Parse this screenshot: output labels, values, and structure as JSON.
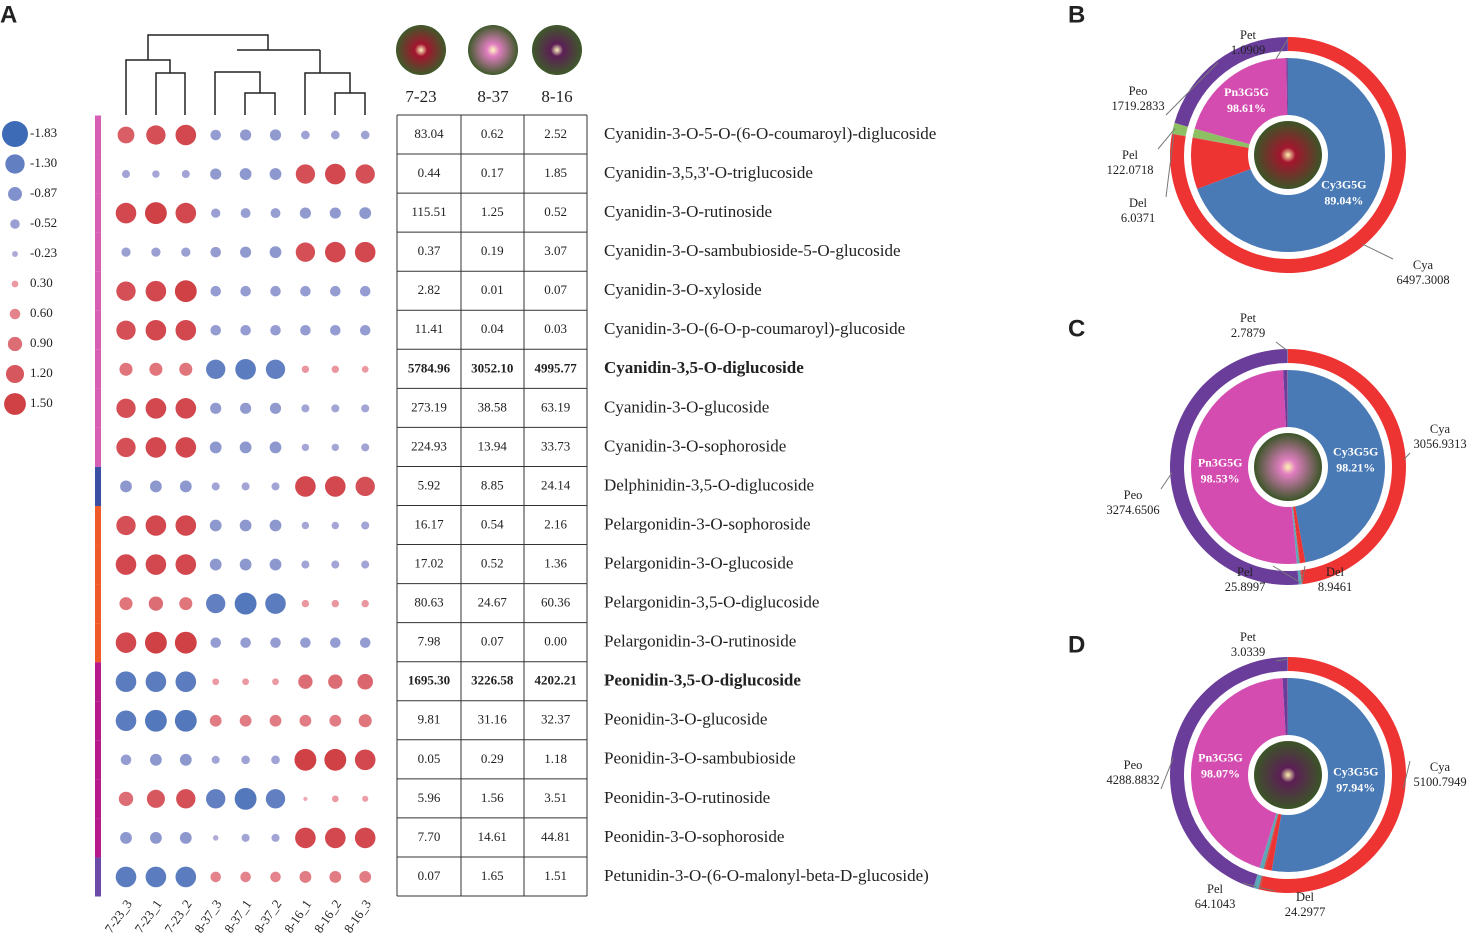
{
  "panel_labels": [
    "A",
    "B",
    "C",
    "D"
  ],
  "heatmap": {
    "samples": [
      "7-23",
      "8-37",
      "8-16"
    ],
    "sample_colors": [
      "#a3152e",
      "#e07ec0",
      "#5c1f55"
    ],
    "columns": [
      "7-23_3",
      "7-23_1",
      "7-23_2",
      "8-37_3",
      "8-37_1",
      "8-37_2",
      "8-16_1",
      "8-16_2",
      "8-16_3"
    ],
    "legend": [
      -1.83,
      {
        "value": -1.3,
        "label": "-1.30"
      },
      -0.87,
      -0.52,
      -0.23,
      {
        "value": 0.3,
        "label": "0.30"
      },
      {
        "value": 0.6,
        "label": "0.60"
      },
      {
        "value": 0.9,
        "label": "0.90"
      },
      {
        "value": 1.2,
        "label": "1.20"
      },
      {
        "value": 1.5,
        "label": "1.50"
      }
    ],
    "rows": [
      {
        "compound": "Cyanidin-3-O-5-O-(6-O-coumaroyl)-diglucoside",
        "group_color": "#d65fb5",
        "values": [
          "83.04",
          "0.62",
          "2.52"
        ],
        "z": [
          1.1,
          1.3,
          1.4,
          -0.6,
          -0.65,
          -0.65,
          -0.45,
          -0.45,
          -0.45
        ]
      },
      {
        "compound": "Cyanidin-3,5,3'-O-triglucoside",
        "group_color": "#d65fb5",
        "values": [
          "0.44",
          "0.17",
          "1.85"
        ],
        "z": [
          -0.4,
          -0.35,
          -0.4,
          -0.65,
          -0.7,
          -0.7,
          1.3,
          1.4,
          1.3
        ]
      },
      {
        "compound": "Cyanidin-3-O-rutinoside",
        "group_color": "#d65fb5",
        "values": [
          "115.51",
          "1.25",
          "0.52"
        ],
        "z": [
          1.4,
          1.5,
          1.4,
          -0.5,
          -0.55,
          -0.55,
          -0.65,
          -0.65,
          -0.7
        ]
      },
      {
        "compound": "Cyanidin-3-O-sambubioside-5-O-glucoside",
        "group_color": "#d65fb5",
        "values": [
          "0.37",
          "0.19",
          "3.07"
        ],
        "z": [
          -0.5,
          -0.5,
          -0.5,
          -0.6,
          -0.65,
          -0.7,
          1.3,
          1.4,
          1.4
        ]
      },
      {
        "compound": "Cyanidin-3-O-xyloside",
        "group_color": "#d65fb5",
        "values": [
          "2.82",
          "0.01",
          "0.07"
        ],
        "z": [
          1.3,
          1.4,
          1.5,
          -0.6,
          -0.6,
          -0.6,
          -0.6,
          -0.6,
          -0.6
        ]
      },
      {
        "compound": "Cyanidin-3-O-(6-O-p-coumaroyl)-glucoside",
        "group_color": "#d65fb5",
        "values": [
          "11.41",
          "0.04",
          "0.03"
        ],
        "z": [
          1.3,
          1.4,
          1.4,
          -0.6,
          -0.6,
          -0.6,
          -0.6,
          -0.6,
          -0.6
        ]
      },
      {
        "compound": "Cyanidin-3,5-O-diglucoside",
        "group_color": "#d65fb5",
        "bold": true,
        "values": [
          "5784.96",
          "3052.10",
          "4995.77"
        ],
        "z": [
          0.8,
          0.8,
          0.8,
          -1.3,
          -1.4,
          -1.3,
          0.35,
          0.35,
          0.3
        ]
      },
      {
        "compound": "Cyanidin-3-O-glucoside",
        "group_color": "#d65fb5",
        "values": [
          "273.19",
          "38.58",
          "63.19"
        ],
        "z": [
          1.3,
          1.4,
          1.4,
          -0.65,
          -0.65,
          -0.65,
          -0.4,
          -0.4,
          -0.4
        ]
      },
      {
        "compound": "Cyanidin-3-O-sophoroside",
        "group_color": "#d65fb5",
        "values": [
          "224.93",
          "13.94",
          "33.73"
        ],
        "z": [
          1.3,
          1.4,
          1.4,
          -0.7,
          -0.7,
          -0.7,
          -0.35,
          -0.35,
          -0.4
        ]
      },
      {
        "compound": "Delphinidin-3,5-O-diglucoside",
        "group_color": "#3a4fa3",
        "values": [
          "5.92",
          "8.85",
          "24.14"
        ],
        "z": [
          -0.7,
          -0.7,
          -0.7,
          -0.4,
          -0.4,
          -0.4,
          1.4,
          1.4,
          1.3
        ]
      },
      {
        "compound": "Pelargonidin-3-O-sophoroside",
        "group_color": "#f05a28",
        "values": [
          "16.17",
          "0.54",
          "2.16"
        ],
        "z": [
          1.3,
          1.4,
          1.4,
          -0.7,
          -0.7,
          -0.7,
          -0.35,
          -0.35,
          -0.4
        ]
      },
      {
        "compound": "Pelargonidin-3-O-glucoside",
        "group_color": "#f05a28",
        "values": [
          "17.02",
          "0.52",
          "1.36"
        ],
        "z": [
          1.4,
          1.4,
          1.4,
          -0.7,
          -0.7,
          -0.7,
          -0.4,
          -0.4,
          -0.4
        ]
      },
      {
        "compound": "Pelargonidin-3,5-O-diglucoside",
        "group_color": "#f05a28",
        "values": [
          "80.63",
          "24.67",
          "60.36"
        ],
        "z": [
          0.8,
          0.9,
          0.8,
          -1.3,
          -1.5,
          -1.4,
          0.35,
          0.35,
          0.35
        ]
      },
      {
        "compound": "Pelargonidin-3-O-rutinoside",
        "group_color": "#f05a28",
        "values": [
          "7.98",
          "0.07",
          "0.00"
        ],
        "z": [
          1.4,
          1.5,
          1.5,
          -0.6,
          -0.6,
          -0.6,
          -0.6,
          -0.6,
          -0.6
        ]
      },
      {
        "compound": "Peonidin-3,5-O-diglucoside",
        "group_color": "#b5198a",
        "bold": true,
        "values": [
          "1695.30",
          "3226.58",
          "4202.21"
        ],
        "z": [
          -1.4,
          -1.4,
          -1.4,
          0.3,
          0.3,
          0.3,
          0.9,
          0.9,
          1.0
        ]
      },
      {
        "compound": "Peonidin-3-O-glucoside",
        "group_color": "#b5198a",
        "values": [
          "9.81",
          "31.16",
          "32.37"
        ],
        "z": [
          -1.4,
          -1.5,
          -1.5,
          0.7,
          0.7,
          0.7,
          0.7,
          0.7,
          0.8
        ]
      },
      {
        "compound": "Peonidin-3-O-sambubioside",
        "group_color": "#b5198a",
        "values": [
          "0.05",
          "0.29",
          "1.18"
        ],
        "z": [
          -0.6,
          -0.7,
          -0.7,
          -0.4,
          -0.45,
          -0.45,
          1.5,
          1.5,
          1.4
        ]
      },
      {
        "compound": "Peonidin-3-O-rutinoside",
        "group_color": "#b5198a",
        "values": [
          "5.96",
          "1.56",
          "3.51"
        ],
        "z": [
          0.9,
          1.2,
          1.3,
          -1.3,
          -1.5,
          -1.3,
          0.1,
          0.3,
          0.25
        ]
      },
      {
        "compound": "Peonidin-3-O-sophoroside",
        "group_color": "#b5198a",
        "values": [
          "7.70",
          "14.61",
          "44.81"
        ],
        "z": [
          -0.7,
          -0.7,
          -0.7,
          -0.2,
          -0.4,
          -0.4,
          1.4,
          1.4,
          1.4
        ]
      },
      {
        "compound": "Petunidin-3-O-(6-O-malonyl-beta-D-glucoside)",
        "group_color": "#6b4aa8",
        "values": [
          "0.07",
          "1.65",
          "1.51"
        ],
        "z": [
          -1.4,
          -1.4,
          -1.4,
          0.6,
          0.6,
          0.6,
          0.7,
          0.7,
          0.7
        ]
      }
    ]
  },
  "donuts": [
    {
      "type": "donut",
      "inner": [
        {
          "name": "Cy3G5G",
          "value": 89.04,
          "value_label": "89.04%",
          "color": "#4a7ab5"
        },
        {
          "name": "Pn3G5G",
          "value": 98.61,
          "value_label": "98.61%",
          "color": "#d44cb0"
        }
      ],
      "outer": [
        {
          "name": "Cya",
          "value": 6497.3008,
          "color": "#ee3333"
        },
        {
          "name": "Del",
          "value": 6.0371,
          "color": "#c0504d"
        },
        {
          "name": "Pel",
          "value": 122.0718,
          "color": "#8cc063"
        },
        {
          "name": "Peo",
          "value": 1719.2833,
          "color": "#6a3d9a"
        },
        {
          "name": "Pet",
          "value": 1.0909,
          "color": "#aaaaaa"
        }
      ]
    },
    {
      "type": "donut",
      "inner": [
        {
          "name": "Cy3G5G",
          "value": 98.21,
          "value_label": "98.21%",
          "color": "#4a7ab5"
        },
        {
          "name": "Pn3G5G",
          "value": 98.53,
          "value_label": "98.53%",
          "color": "#d44cb0"
        }
      ],
      "outer": [
        {
          "name": "Cya",
          "value": 3056.9313,
          "color": "#ee3333"
        },
        {
          "name": "Del",
          "value": 8.9461,
          "color": "#c0504d"
        },
        {
          "name": "Pel",
          "value": 25.8997,
          "color": "#5aa8b8"
        },
        {
          "name": "Peo",
          "value": 3274.6506,
          "color": "#6a3d9a"
        },
        {
          "name": "Pet",
          "value": 2.7879,
          "color": "#aaaaaa"
        }
      ]
    },
    {
      "type": "donut",
      "inner": [
        {
          "name": "Cy3G5G",
          "value": 97.94,
          "value_label": "97.94%",
          "color": "#4a7ab5"
        },
        {
          "name": "Pn3G5G",
          "value": 98.07,
          "value_label": "98.07%",
          "color": "#d44cb0"
        }
      ],
      "outer": [
        {
          "name": "Cya",
          "value": 5100.7949,
          "color": "#ee3333"
        },
        {
          "name": "Del",
          "value": 24.2977,
          "color": "#c0504d"
        },
        {
          "name": "Pel",
          "value": 64.1043,
          "color": "#5aa8b8"
        },
        {
          "name": "Peo",
          "value": 4288.8832,
          "color": "#6a3d9a"
        },
        {
          "name": "Pet",
          "value": 3.0339,
          "color": "#aaaaaa"
        }
      ]
    }
  ]
}
